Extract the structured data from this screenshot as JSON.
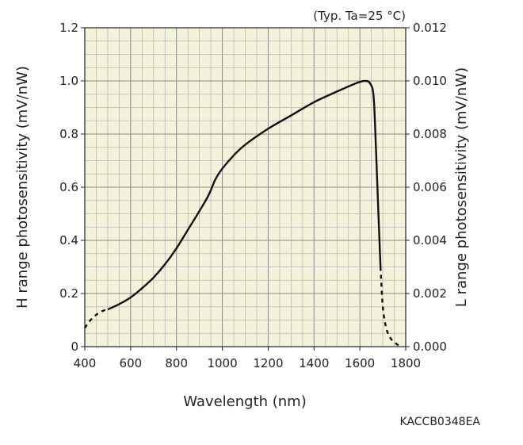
{
  "chart_data": {
    "type": "line",
    "note": "(Typ. Ta=25 °C)",
    "figure_code": "KACCB0348EA",
    "xlabel": "Wavelength (nm)",
    "ylabel_left": "H range photosensitivity (mV/nW)",
    "ylabel_right": "L range photosensitivity (mV/nW)",
    "xlim": [
      400,
      1800
    ],
    "ylim_left": [
      0,
      1.2
    ],
    "ylim_right": [
      0,
      0.012
    ],
    "x_ticks": [
      "400",
      "600",
      "800",
      "1000",
      "1200",
      "1400",
      "1600",
      "1800"
    ],
    "y_left_ticks": [
      "0",
      "0.2",
      "0.4",
      "0.6",
      "0.8",
      "1.0",
      "1.2"
    ],
    "y_right_ticks": [
      "0.000",
      "0.002",
      "0.004",
      "0.006",
      "0.008",
      "0.010",
      "0.012"
    ],
    "grid": true,
    "series": [
      {
        "segments": [
          {
            "style": "dashed",
            "points": [
              [
                400,
                0.07
              ],
              [
                420,
                0.095
              ],
              [
                450,
                0.12
              ],
              [
                480,
                0.135
              ],
              [
                500,
                0.14
              ]
            ]
          },
          {
            "style": "solid",
            "points": [
              [
                500,
                0.14
              ],
              [
                550,
                0.16
              ],
              [
                600,
                0.185
              ],
              [
                650,
                0.22
              ],
              [
                700,
                0.26
              ],
              [
                750,
                0.31
              ],
              [
                800,
                0.37
              ],
              [
                850,
                0.44
              ],
              [
                900,
                0.51
              ],
              [
                940,
                0.57
              ],
              [
                970,
                0.63
              ],
              [
                1000,
                0.67
              ],
              [
                1050,
                0.72
              ],
              [
                1100,
                0.76
              ],
              [
                1200,
                0.82
              ],
              [
                1300,
                0.87
              ],
              [
                1400,
                0.92
              ],
              [
                1500,
                0.96
              ],
              [
                1580,
                0.99
              ],
              [
                1620,
                1.0
              ],
              [
                1645,
                0.99
              ],
              [
                1660,
                0.94
              ],
              [
                1670,
                0.75
              ],
              [
                1680,
                0.52
              ],
              [
                1690,
                0.3
              ]
            ]
          },
          {
            "style": "dashed",
            "points": [
              [
                1690,
                0.3
              ],
              [
                1700,
                0.15
              ],
              [
                1715,
                0.07
              ],
              [
                1735,
                0.03
              ],
              [
                1760,
                0.01
              ],
              [
                1780,
                0.0
              ]
            ]
          }
        ]
      }
    ]
  }
}
